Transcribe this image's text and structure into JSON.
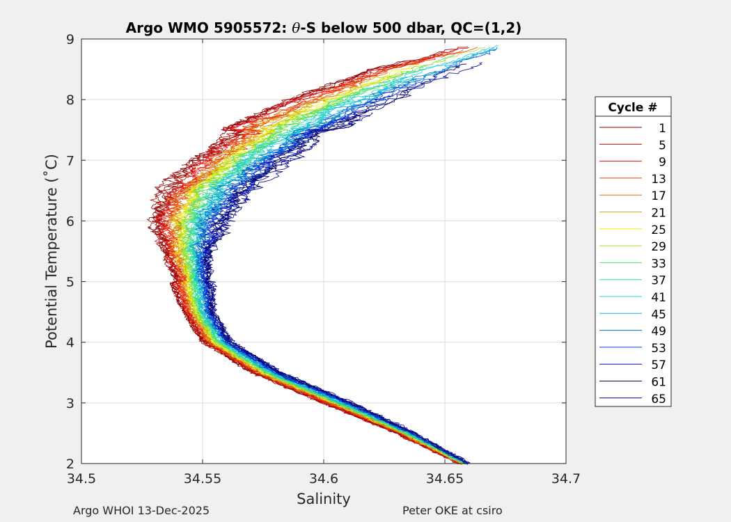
{
  "chart_data": {
    "type": "line",
    "title_prefix": "Argo WMO 5905572: ",
    "title_theta": "θ",
    "title_suffix": "-S below 500 dbar,  QC=(1,2)",
    "xlabel": "Salinity",
    "ylabel": "Potential Temperature (˚C)",
    "xlim": [
      34.5,
      34.7
    ],
    "ylim": [
      2,
      9
    ],
    "xticks": [
      34.5,
      34.55,
      34.6,
      34.65,
      34.7
    ],
    "xtick_labels": [
      "34.5",
      "34.55",
      "34.6",
      "34.65",
      "34.7"
    ],
    "yticks": [
      2,
      3,
      4,
      5,
      6,
      7,
      8,
      9
    ],
    "ytick_labels": [
      "2",
      "3",
      "4",
      "5",
      "6",
      "7",
      "8",
      "9"
    ],
    "grid": true,
    "legend": {
      "title": "Cycle #",
      "placement": "right-outside",
      "entries": [
        {
          "label": "1",
          "color": "#800000"
        },
        {
          "label": "5",
          "color": "#b30000"
        },
        {
          "label": "9",
          "color": "#e01010"
        },
        {
          "label": "13",
          "color": "#f04000"
        },
        {
          "label": "17",
          "color": "#e07020"
        },
        {
          "label": "21",
          "color": "#d0b010"
        },
        {
          "label": "25",
          "color": "#f0f000"
        },
        {
          "label": "29",
          "color": "#a0e020"
        },
        {
          "label": "33",
          "color": "#50e060"
        },
        {
          "label": "37",
          "color": "#30e0a0"
        },
        {
          "label": "41",
          "color": "#20d0d0"
        },
        {
          "label": "45",
          "color": "#10b0e0"
        },
        {
          "label": "49",
          "color": "#0070c0"
        },
        {
          "label": "53",
          "color": "#0040e0"
        },
        {
          "label": "57",
          "color": "#0010c0"
        },
        {
          "label": "61",
          "color": "#000050"
        },
        {
          "label": "65",
          "color": "#000090"
        }
      ]
    },
    "envelope": {
      "theta": [
        2.0,
        2.5,
        3.0,
        3.5,
        4.0,
        4.5,
        5.0,
        5.5,
        6.0,
        6.5,
        7.0,
        7.5,
        8.0,
        8.5,
        8.9
      ],
      "sal_min": [
        34.656,
        34.63,
        34.6,
        34.57,
        34.55,
        34.542,
        34.537,
        34.53,
        34.523,
        34.527,
        34.54,
        34.558,
        34.585,
        34.62,
        34.66
      ],
      "sal_max": [
        34.66,
        34.638,
        34.612,
        34.583,
        34.563,
        34.555,
        34.555,
        34.557,
        34.565,
        34.575,
        34.59,
        34.608,
        34.632,
        34.66,
        34.68
      ]
    }
  },
  "footer": {
    "left": "Argo WHOI 13-Dec-2025",
    "right": "Peter OKE at csiro"
  }
}
